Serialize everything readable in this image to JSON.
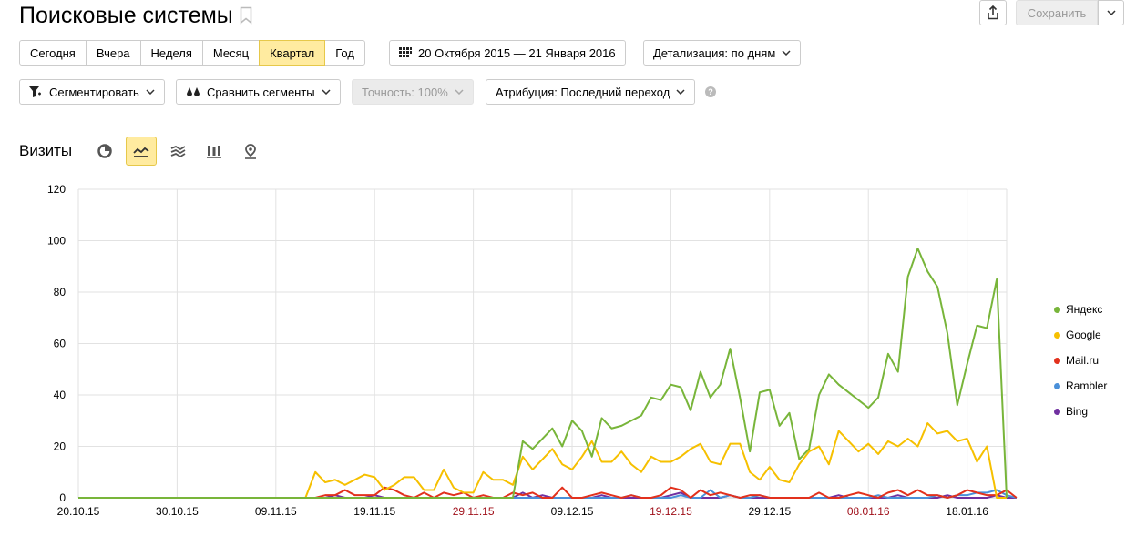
{
  "header": {
    "title": "Поисковые системы",
    "save_label": "Сохранить"
  },
  "periods": [
    {
      "label": "Сегодня",
      "active": false
    },
    {
      "label": "Вчера",
      "active": false
    },
    {
      "label": "Неделя",
      "active": false
    },
    {
      "label": "Месяц",
      "active": false
    },
    {
      "label": "Квартал",
      "active": true
    },
    {
      "label": "Год",
      "active": false
    }
  ],
  "toolbar": {
    "date_range": "20 Октября 2015 — 21 Января 2016",
    "detail": "Детализация: по дням",
    "segment": "Сегментировать",
    "compare": "Сравнить сегменты",
    "accuracy": "Точность: 100%",
    "attribution": "Атрибуция: Последний переход",
    "help": "?"
  },
  "metric": {
    "label": "Визиты"
  },
  "view_tabs": [
    {
      "name": "pie-chart-icon",
      "active": false
    },
    {
      "name": "line-chart-icon",
      "active": true
    },
    {
      "name": "area-chart-icon",
      "active": false
    },
    {
      "name": "bar-chart-icon",
      "active": false
    },
    {
      "name": "map-pin-icon",
      "active": false
    }
  ],
  "colors": {
    "yandex": "#78b53a",
    "google": "#f6c000",
    "mailru": "#e2311d",
    "rambler": "#4a90d9",
    "bing": "#7030a0",
    "accent": "#ffeba0"
  },
  "chart_data": {
    "type": "line",
    "title": "",
    "xlabel": "",
    "ylabel": "",
    "ylim": [
      0,
      120
    ],
    "yticks": [
      "0",
      "20",
      "40",
      "60",
      "80",
      "100",
      "120"
    ],
    "x_start": "20.10.15",
    "x_end": "21.01.16",
    "xticks": [
      {
        "label": "20.10.15",
        "index": 0,
        "weekend": false
      },
      {
        "label": "30.10.15",
        "index": 10,
        "weekend": false
      },
      {
        "label": "09.11.15",
        "index": 20,
        "weekend": false
      },
      {
        "label": "19.11.15",
        "index": 30,
        "weekend": false
      },
      {
        "label": "29.11.15",
        "index": 40,
        "weekend": true
      },
      {
        "label": "09.12.15",
        "index": 50,
        "weekend": false
      },
      {
        "label": "19.12.15",
        "index": 60,
        "weekend": true
      },
      {
        "label": "29.12.15",
        "index": 70,
        "weekend": false
      },
      {
        "label": "08.01.16",
        "index": 80,
        "weekend": true
      },
      {
        "label": "18.01.16",
        "index": 90,
        "weekend": false
      }
    ],
    "legend_position": "right",
    "grid": true,
    "series": [
      {
        "name": "Яндекс",
        "color": "#78b53a",
        "values": [
          0,
          0,
          0,
          0,
          0,
          0,
          0,
          0,
          0,
          0,
          0,
          0,
          0,
          0,
          0,
          0,
          0,
          0,
          0,
          0,
          0,
          0,
          0,
          0,
          0,
          0,
          0,
          0,
          0,
          0,
          0,
          0,
          0,
          0,
          0,
          0,
          0,
          0,
          0,
          0,
          0,
          0,
          0,
          0,
          0,
          22,
          19,
          23,
          27,
          20,
          30,
          26,
          16,
          31,
          27,
          28,
          30,
          32,
          39,
          38,
          44,
          43,
          34,
          49,
          39,
          44,
          58,
          39,
          18,
          41,
          42,
          28,
          33,
          15,
          19,
          40,
          48,
          44,
          41,
          38,
          35,
          39,
          56,
          49,
          86,
          97,
          88,
          82,
          64,
          36,
          52,
          67,
          66,
          85,
          0
        ]
      },
      {
        "name": "Google",
        "color": "#f6c000",
        "values": [
          0,
          0,
          0,
          0,
          0,
          0,
          0,
          0,
          0,
          0,
          0,
          0,
          0,
          0,
          0,
          0,
          0,
          0,
          0,
          0,
          0,
          0,
          0,
          0,
          10,
          6,
          7,
          5,
          7,
          9,
          8,
          3,
          5,
          8,
          8,
          3,
          3,
          11,
          4,
          2,
          2,
          10,
          7,
          7,
          5,
          16,
          11,
          15,
          19,
          13,
          11,
          16,
          22,
          14,
          14,
          18,
          13,
          10,
          16,
          14,
          14,
          16,
          19,
          21,
          14,
          13,
          21,
          21,
          10,
          7,
          12,
          7,
          6,
          13,
          18,
          20,
          13,
          26,
          22,
          18,
          21,
          17,
          22,
          20,
          23,
          20,
          29,
          25,
          26,
          22,
          23,
          14,
          20,
          0,
          0
        ]
      },
      {
        "name": "Mail.ru",
        "color": "#e2311d",
        "values": [
          0,
          0,
          0,
          0,
          0,
          0,
          0,
          0,
          0,
          0,
          0,
          0,
          0,
          0,
          0,
          0,
          0,
          0,
          0,
          0,
          0,
          0,
          0,
          0,
          0,
          1,
          1,
          3,
          1,
          1,
          1,
          4,
          3,
          1,
          0,
          2,
          0,
          2,
          1,
          2,
          0,
          1,
          0,
          0,
          2,
          1,
          2,
          0,
          0,
          4,
          0,
          0,
          1,
          2,
          1,
          0,
          1,
          0,
          0,
          1,
          4,
          3,
          0,
          3,
          1,
          2,
          1,
          0,
          1,
          1,
          0,
          0,
          0,
          0,
          0,
          2,
          0,
          0,
          1,
          2,
          1,
          0,
          2,
          3,
          1,
          3,
          1,
          1,
          0,
          1,
          3,
          2,
          1,
          1,
          3,
          0
        ]
      },
      {
        "name": "Rambler",
        "color": "#4a90d9",
        "values": [
          0,
          0,
          0,
          0,
          0,
          0,
          0,
          0,
          0,
          0,
          0,
          0,
          0,
          0,
          0,
          0,
          0,
          0,
          0,
          0,
          0,
          0,
          0,
          0,
          0,
          0,
          0,
          0,
          0,
          0,
          0,
          0,
          0,
          0,
          0,
          0,
          0,
          0,
          0,
          0,
          0,
          0,
          0,
          0,
          0,
          0,
          0,
          0,
          0,
          0,
          0,
          0,
          0,
          0,
          0,
          0,
          1,
          0,
          0,
          0,
          0,
          1,
          0,
          0,
          3,
          0,
          1,
          0,
          0,
          1,
          0,
          0,
          0,
          0,
          0,
          0,
          0,
          0,
          0,
          0,
          0,
          1,
          0,
          0,
          0,
          0,
          0,
          1,
          0,
          1,
          1,
          2,
          2,
          3,
          1,
          0
        ]
      },
      {
        "name": "Bing",
        "color": "#7030a0",
        "values": [
          0,
          0,
          0,
          0,
          0,
          0,
          0,
          0,
          0,
          0,
          0,
          0,
          0,
          0,
          0,
          0,
          0,
          0,
          0,
          0,
          0,
          0,
          0,
          0,
          0,
          0,
          1,
          0,
          0,
          0,
          1,
          0,
          0,
          0,
          0,
          0,
          0,
          0,
          0,
          0,
          0,
          0,
          0,
          0,
          0,
          2,
          0,
          1,
          0,
          0,
          0,
          0,
          0,
          1,
          0,
          0,
          0,
          0,
          0,
          0,
          1,
          2,
          0,
          0,
          0,
          0,
          1,
          0,
          0,
          0,
          0,
          0,
          0,
          0,
          0,
          0,
          0,
          1,
          0,
          0,
          0,
          0,
          0,
          1,
          0,
          0,
          0,
          0,
          1,
          0,
          0,
          0,
          0,
          1,
          0,
          0
        ]
      }
    ]
  }
}
